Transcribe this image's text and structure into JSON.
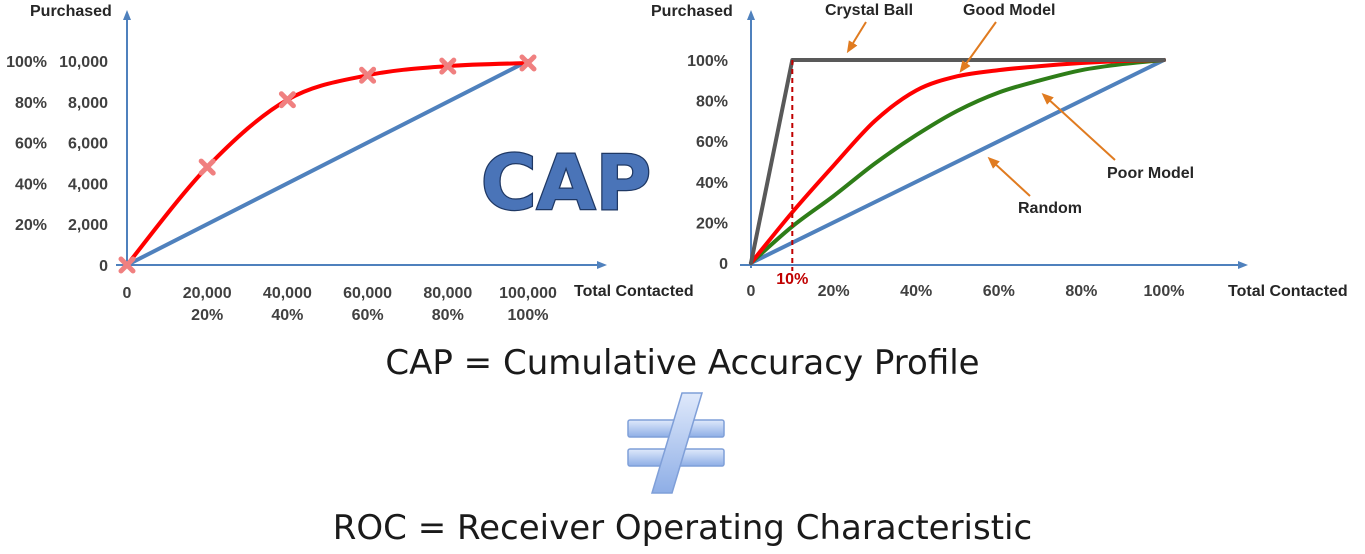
{
  "title_graphic": "CAP",
  "captions": {
    "cap": "CAP = Cumulative Accuracy Profile",
    "neq_symbol": "≠",
    "roc": "ROC = Receiver Operating Characteristic"
  },
  "colors": {
    "axis": "#4f81bd",
    "model": "#ff0000",
    "random": "#4f81bd",
    "crystal_ball": "#595959",
    "poor_model": "#2e7d18",
    "marker": "#f08080",
    "arrow": "#e07b20",
    "cutoff": "#c00000"
  },
  "chart_data": [
    {
      "type": "line",
      "ylabel": "Purchased",
      "xlabel": "Total Contacted",
      "x_ticks": [
        "0",
        "20,000",
        "40,000",
        "60,000",
        "80,000",
        "100,000"
      ],
      "x_ticks_pct": [
        "",
        "20%",
        "40%",
        "60%",
        "80%",
        "100%"
      ],
      "y_ticks": [
        "0",
        "2,000",
        "4,000",
        "6,000",
        "8,000",
        "10,000"
      ],
      "y_ticks_pct": [
        "",
        "20%",
        "40%",
        "60%",
        "80%",
        "100%"
      ],
      "xlim": [
        0,
        100000
      ],
      "ylim": [
        0,
        10000
      ],
      "series": [
        {
          "key": "model",
          "x": [
            0,
            20000,
            40000,
            60000,
            80000,
            100000
          ],
          "values": [
            0,
            4800,
            8100,
            9300,
            9750,
            9900
          ],
          "markers": true
        },
        {
          "key": "random",
          "x": [
            0,
            100000
          ],
          "values": [
            0,
            10000
          ],
          "markers": false
        }
      ]
    },
    {
      "type": "line",
      "ylabel": "Purchased",
      "xlabel": "Total Contacted",
      "x_ticks": [
        "0",
        "20%",
        "40%",
        "60%",
        "80%",
        "100%"
      ],
      "y_ticks": [
        "0",
        "20%",
        "40%",
        "60%",
        "80%",
        "100%"
      ],
      "xlim": [
        0,
        100
      ],
      "ylim": [
        0,
        100
      ],
      "cutoff": {
        "x": 10,
        "label": "10%"
      },
      "series": [
        {
          "key": "crystal_ball",
          "name": "Crystal Ball",
          "x": [
            0,
            10,
            100
          ],
          "values": [
            0,
            100,
            100
          ]
        },
        {
          "key": "good_model",
          "name": "Good Model",
          "x": [
            0,
            10,
            20,
            30,
            40,
            50,
            60,
            70,
            80,
            90,
            100
          ],
          "values": [
            0,
            25,
            48,
            70,
            85,
            92,
            95,
            97,
            98.5,
            99.5,
            100
          ]
        },
        {
          "key": "poor_model",
          "name": "Poor Model",
          "x": [
            0,
            10,
            20,
            30,
            40,
            50,
            60,
            70,
            80,
            90,
            100
          ],
          "values": [
            0,
            18,
            33,
            49,
            63,
            75,
            84,
            90,
            95,
            98,
            100
          ]
        },
        {
          "key": "random",
          "name": "Random",
          "x": [
            0,
            100
          ],
          "values": [
            0,
            100
          ]
        }
      ]
    }
  ]
}
